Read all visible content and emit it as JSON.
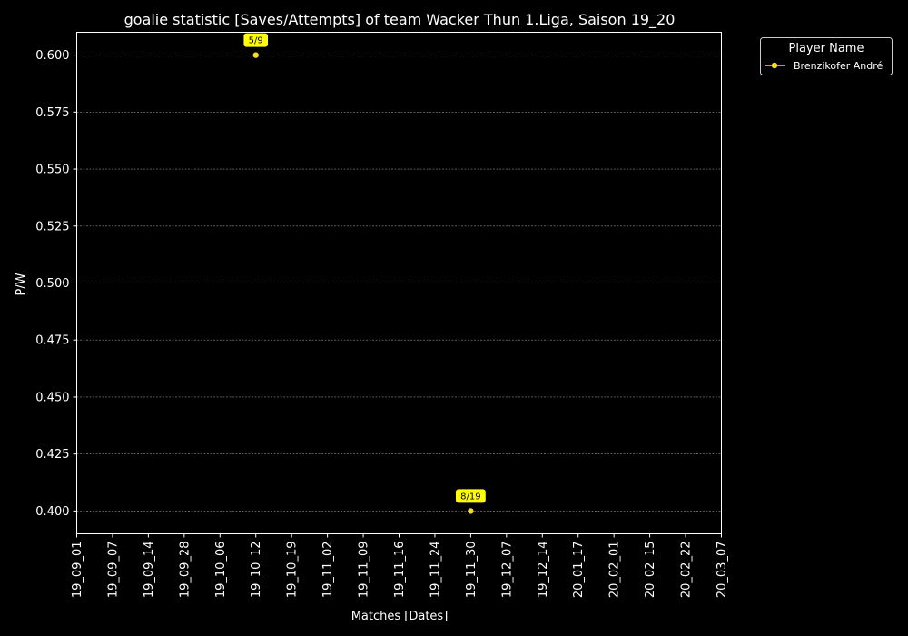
{
  "chart_data": {
    "type": "line",
    "title": "goalie statistic [Saves/Attempts] of team Wacker Thun 1.Liga, Saison 19_20",
    "xlabel": "Matches [Dates]",
    "ylabel": "P/W",
    "categories": [
      "19_09_01",
      "19_09_07",
      "19_09_14",
      "19_09_28",
      "19_10_06",
      "19_10_12",
      "19_10_19",
      "19_11_02",
      "19_11_09",
      "19_11_16",
      "19_11_24",
      "19_11_30",
      "19_12_07",
      "19_12_14",
      "20_01_17",
      "20_02_01",
      "20_02_15",
      "20_02_22",
      "20_03_07"
    ],
    "ylim": [
      0.39,
      0.61
    ],
    "yticks": [
      "0.400",
      "0.425",
      "0.450",
      "0.475",
      "0.500",
      "0.525",
      "0.550",
      "0.575",
      "0.600"
    ],
    "grid": true,
    "legend": {
      "title": "Player Name",
      "placement": "outside-top-right"
    },
    "series": [
      {
        "name": "Brenzikofer André",
        "color": "#f5dc1e",
        "points": [
          {
            "x": "19_10_12",
            "y": 0.6,
            "label": "5/9"
          },
          {
            "x": "19_11_30",
            "y": 0.4,
            "label": "8/19"
          }
        ]
      }
    ],
    "label_bg": "#ffff00"
  }
}
